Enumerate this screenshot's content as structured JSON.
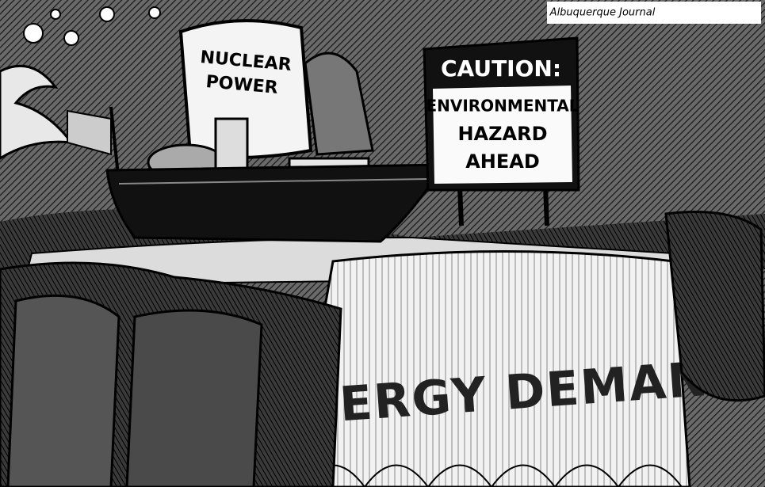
{
  "signature": "Albuquerque Journal",
  "reactor": {
    "line1": "NUCLEAR",
    "line2": "POWER"
  },
  "sign": {
    "heading": "CAUTION:",
    "line1": "ENVIRONMENTAL",
    "line2": "HAZARD",
    "line3": "AHEAD"
  },
  "waterfall": "ENERGY DEMAND"
}
